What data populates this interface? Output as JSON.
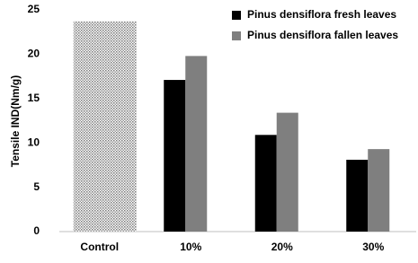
{
  "chart_data": {
    "type": "bar",
    "y_label": "Tensile IND(Nm/g)",
    "categories": [
      "Control",
      "10%",
      "20%",
      "30%"
    ],
    "series": [
      {
        "color": "#c8c8c8",
        "pattern": "dots",
        "values": [
          23.7,
          null,
          null,
          null
        ]
      },
      {
        "name": "Pinus densiflora fresh leaves",
        "color": "#000000",
        "values": [
          null,
          17.1,
          10.9,
          8.1
        ]
      },
      {
        "name": "Pinus densiflora fallen leaves",
        "color": "#7f7f7f",
        "values": [
          null,
          19.8,
          13.4,
          9.3
        ]
      }
    ],
    "ylim": [
      0,
      25
    ],
    "yticks": [
      0,
      5,
      10,
      15,
      20,
      25
    ],
    "grid": false,
    "legend": "top-right"
  }
}
